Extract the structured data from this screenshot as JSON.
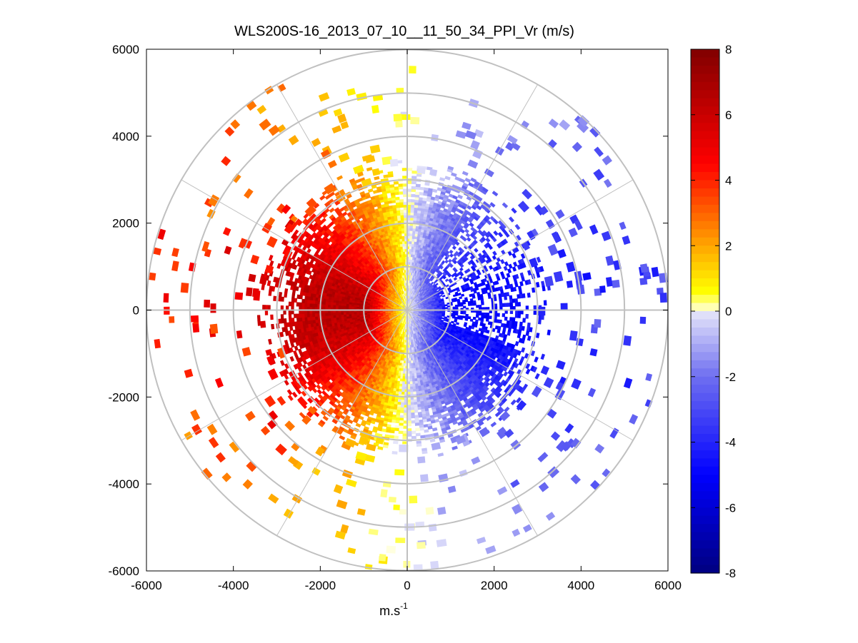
{
  "chart_data": {
    "type": "heatmap",
    "subtype": "polar-ppi",
    "title": "WLS200S-16_2013_07_10__11_50_34_PPI_Vr (m/s)",
    "xlabel": "m.s",
    "xlabel_superscript": "-1",
    "ylabel": "",
    "xlim": [
      -6000,
      6000
    ],
    "ylim": [
      -6000,
      6000
    ],
    "xticks": [
      -6000,
      -4000,
      -2000,
      0,
      2000,
      4000,
      6000
    ],
    "yticks": [
      6000,
      4000,
      2000,
      0,
      -2000,
      -4000,
      -6000
    ],
    "xtick_labels": [
      "-6000",
      "-4000",
      "-2000",
      "0",
      "2000",
      "4000",
      "6000"
    ],
    "ytick_labels": [
      "6000",
      "4000",
      "2000",
      "0",
      "-2000",
      "-4000",
      "-6000"
    ],
    "range_rings_m": [
      1000,
      2000,
      3000,
      4000,
      5000,
      6000
    ],
    "spokes_deg": [
      0,
      30,
      60,
      90,
      120,
      150,
      180,
      210,
      240,
      270,
      300,
      330
    ],
    "max_range_m": 6000,
    "field": {
      "variable": "radial velocity Vr",
      "units": "m/s",
      "positive_azimuth_center_deg": 270,
      "negative_azimuth_center_deg": 90,
      "peak_positive": 6.5,
      "peak_negative": -5,
      "dense_range_m": 3000
    },
    "colorbar": {
      "min": -8,
      "max": 8,
      "ticks": [
        8,
        6,
        4,
        2,
        0,
        -2,
        -4,
        -6,
        -8
      ],
      "tick_labels": [
        "8",
        "6",
        "4",
        "2",
        "0",
        "-2",
        "-4",
        "-6",
        "-8"
      ],
      "colormap_stops": [
        {
          "value": -8,
          "color": "#000080"
        },
        {
          "value": -5,
          "color": "#0000ff"
        },
        {
          "value": -2,
          "color": "#6f6ff0"
        },
        {
          "value": -0.01,
          "color": "#e6e6fa"
        },
        {
          "value": 0.01,
          "color": "#ffffe0"
        },
        {
          "value": 0.6,
          "color": "#ffff00"
        },
        {
          "value": 2,
          "color": "#ffa500"
        },
        {
          "value": 4.5,
          "color": "#ff0000"
        },
        {
          "value": 8,
          "color": "#800000"
        }
      ]
    }
  }
}
